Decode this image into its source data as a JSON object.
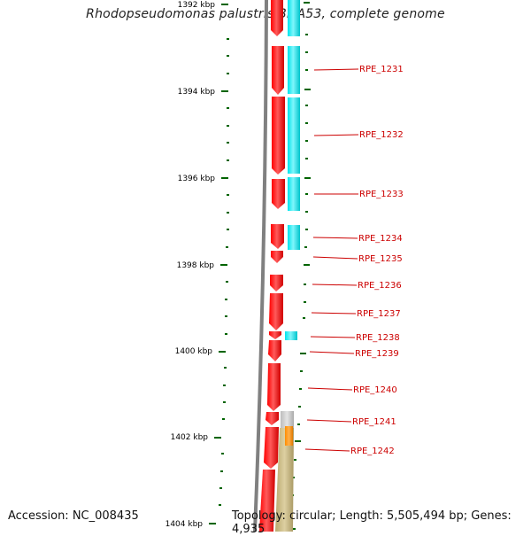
{
  "title": "Rhodopseudomonas palustris BisA53, complete genome",
  "accession": "Accession: NC_008435",
  "topology": "Topology: circular; Length: 5,505,494 bp; Genes: 4,935",
  "colors": {
    "forward_cds": "#ff0000",
    "reverse_cds": "#00e5ee",
    "rna_gene": "#ff8c00",
    "tan_feature": "#c8b882",
    "gray_feature": "#c8c8c8",
    "backbone": "#808080",
    "tick": "#006400",
    "label_line": "#cc0000",
    "label_text": "#cc0000"
  },
  "scale_labels": [
    "1392 kbp",
    "1394 kbp",
    "1396 kbp",
    "1398 kbp",
    "1400 kbp",
    "1402 kbp",
    "1404 kbp"
  ],
  "gene_labels": [
    "RPE_1231",
    "RPE_1232",
    "RPE_1233",
    "RPE_1234",
    "RPE_1235",
    "RPE_1236",
    "RPE_1237",
    "RPE_1238",
    "RPE_1239",
    "RPE_1240",
    "RPE_1241",
    "RPE_1242"
  ]
}
